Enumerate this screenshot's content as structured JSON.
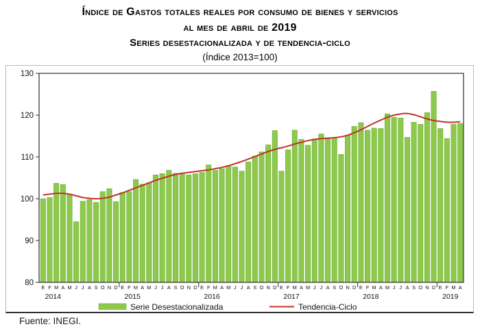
{
  "title": {
    "line1": "Índice de Gastos totales reales por consumo de bienes y servicios",
    "line2": "al mes de abril de 2019",
    "line3": "Series desestacionalizada y de tendencia-ciclo",
    "line4": "(Índice 2013=100)"
  },
  "source": "Fuente: INEGI.",
  "legend": {
    "series_label": "Serie Desestacionalizada",
    "trend_label": "Tendencia-Ciclo"
  },
  "colors": {
    "bar_fill": "#8dc94b",
    "bar_edge": "#6faa35",
    "trend_line": "#c03228",
    "axis": "#2b2b2b",
    "text": "#111111"
  },
  "chart_data": {
    "type": "bar",
    "title": "Índice de Gastos Totales Reales por Consumo de Bienes y Servicios (Índice 2013=100)",
    "xlabel": "",
    "ylabel": "",
    "ylim": [
      80,
      130
    ],
    "yticks": [
      130,
      120,
      110,
      100,
      90,
      80
    ],
    "grid": false,
    "legend_position": "bottom",
    "month_cycle": [
      "E",
      "F",
      "M",
      "A",
      "M",
      "J",
      "J",
      "A",
      "S",
      "O",
      "N",
      "D"
    ],
    "years": [
      {
        "label": "2014",
        "months": 12
      },
      {
        "label": "2015",
        "months": 12
      },
      {
        "label": "2016",
        "months": 12
      },
      {
        "label": "2017",
        "months": 12
      },
      {
        "label": "2018",
        "months": 12
      },
      {
        "label": "2019",
        "months": 4
      }
    ],
    "series": [
      {
        "name": "Serie Desestacionalizada",
        "type": "bar",
        "values": [
          100.0,
          100.3,
          103.7,
          103.4,
          101.0,
          94.5,
          99.4,
          99.8,
          99.1,
          101.7,
          102.4,
          99.3,
          101.5,
          101.7,
          104.6,
          103.5,
          103.8,
          105.7,
          106.0,
          106.8,
          106.1,
          105.9,
          105.7,
          106.0,
          106.3,
          108.1,
          106.8,
          107.2,
          107.8,
          107.6,
          106.6,
          108.8,
          110.2,
          111.2,
          112.9,
          116.3,
          106.6,
          111.7,
          116.4,
          114.2,
          112.8,
          114.3,
          115.5,
          114.3,
          114.6,
          110.6,
          115.2,
          117.3,
          118.2,
          116.4,
          116.9,
          116.8,
          120.3,
          119.5,
          119.3,
          114.7,
          118.3,
          117.8,
          120.6,
          125.7,
          116.8,
          114.4,
          117.8,
          118.0
        ]
      },
      {
        "name": "Tendencia-Ciclo",
        "type": "line",
        "values": [
          100.9,
          101.1,
          101.3,
          101.3,
          101.1,
          100.7,
          100.3,
          100.1,
          100.0,
          100.1,
          100.4,
          100.9,
          101.4,
          102.0,
          102.6,
          103.2,
          103.8,
          104.4,
          104.9,
          105.4,
          105.8,
          106.1,
          106.3,
          106.5,
          106.7,
          106.9,
          107.2,
          107.5,
          107.9,
          108.4,
          108.9,
          109.5,
          110.1,
          110.7,
          111.3,
          111.8,
          112.2,
          112.6,
          113.1,
          113.5,
          113.9,
          114.2,
          114.4,
          114.5,
          114.6,
          114.8,
          115.2,
          115.8,
          116.5,
          117.3,
          118.1,
          118.8,
          119.5,
          120.0,
          120.3,
          120.4,
          120.1,
          119.6,
          119.1,
          118.7,
          118.5,
          118.3,
          118.3,
          118.4
        ]
      }
    ]
  }
}
